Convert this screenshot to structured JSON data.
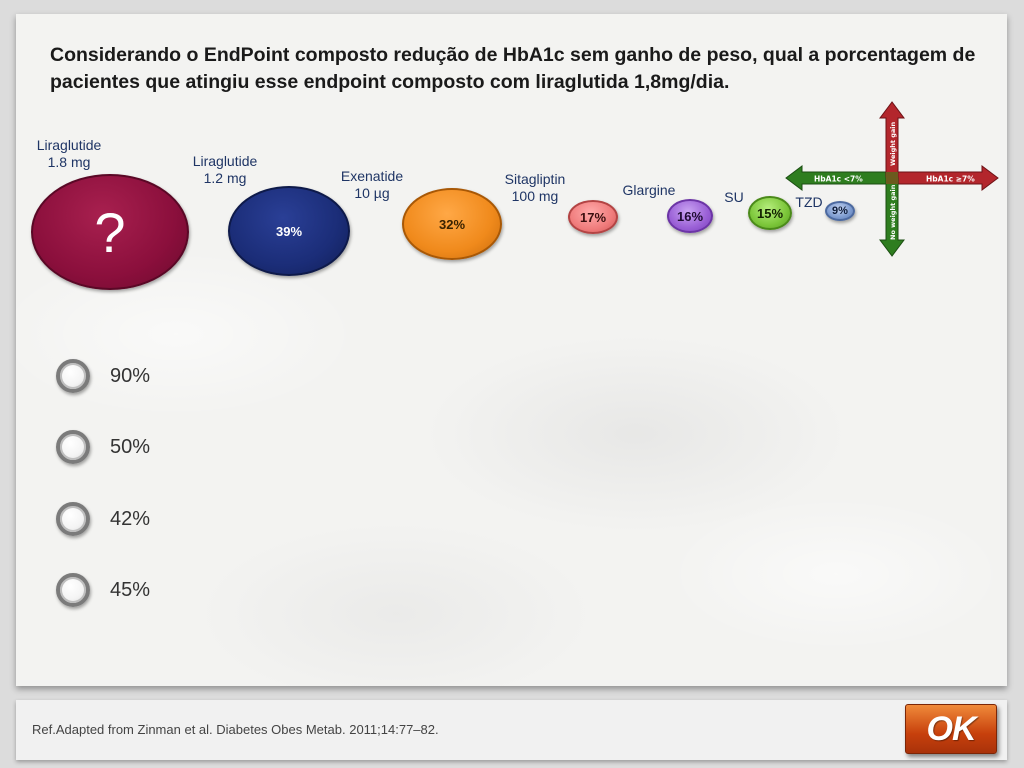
{
  "question": "Considerando o EndPoint composto redução de HbA1c sem ganho de peso, qual a porcentagem de pacientes que atingiu esse endpoint composto com liraglutida 1,8mg/dia.",
  "drugs": [
    {
      "label": "Liraglutide\n1.8 mg",
      "value": "?",
      "color": "#8b0f3c"
    },
    {
      "label": "Liraglutide\n1.2 mg",
      "value": "39%",
      "color": "#1b2d78"
    },
    {
      "label": "Exenatide\n10 µg",
      "value": "32%",
      "color": "#f08a1c"
    },
    {
      "label": "Sitagliptin\n100 mg",
      "value": "17%",
      "color": "#f07c7c"
    },
    {
      "label": "Glargine",
      "value": "16%",
      "color": "#9a60d6"
    },
    {
      "label": "SU",
      "value": "15%",
      "color": "#7cc63a"
    },
    {
      "label": "TZD",
      "value": "9%",
      "color": "#7d9bd0"
    }
  ],
  "legend_arrows": {
    "up": "Weight gain",
    "down": "No weight gain",
    "left": "HbA1c <7%",
    "right": "HbA1c ≥7%"
  },
  "options": [
    "90%",
    "50%",
    "42%",
    "45%"
  ],
  "reference": "Ref.Adapted from Zinman et al. Diabetes Obes Metab. 2011;14:77–82.",
  "ok_label": "OK"
}
